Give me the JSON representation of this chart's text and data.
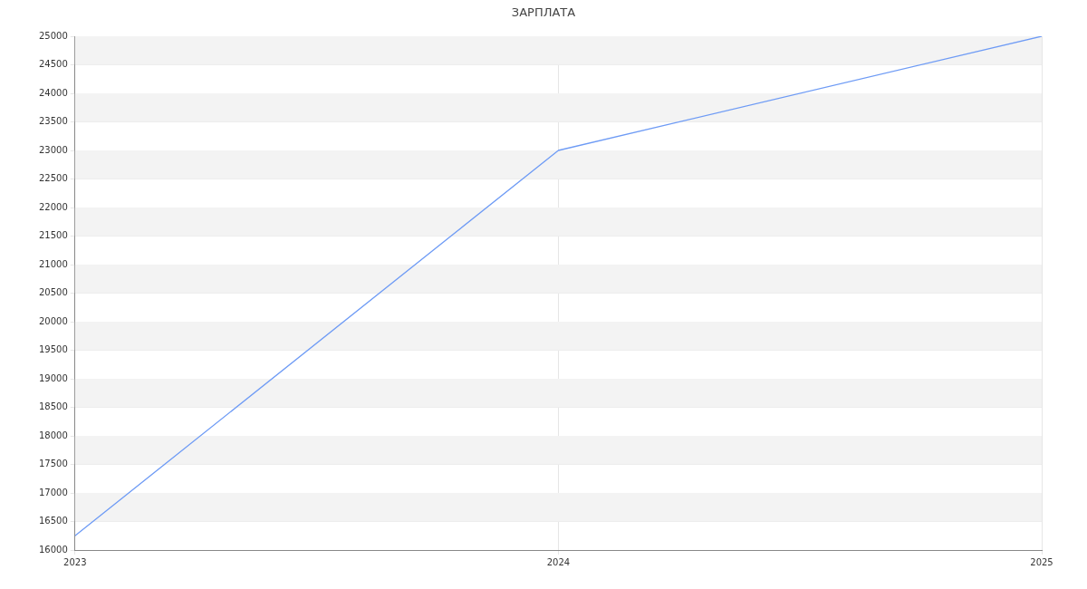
{
  "chart_data": {
    "type": "line",
    "title": "ЗАРПЛАТА",
    "x": [
      2023,
      2024,
      2025
    ],
    "series": [
      {
        "color": "#6e9bf5",
        "values": [
          16250,
          23000,
          25000
        ]
      }
    ],
    "xlim": [
      2023,
      2025
    ],
    "xticks": [
      2023,
      2024,
      2025
    ],
    "ylim": [
      16000,
      25000
    ],
    "yticks": [
      16000,
      16500,
      17000,
      17500,
      18000,
      18500,
      19000,
      19500,
      20000,
      20500,
      21000,
      21500,
      22000,
      22500,
      23000,
      23500,
      24000,
      24500,
      25000
    ],
    "grid": true,
    "legend": false,
    "marker": "none",
    "line_style": "solid"
  }
}
